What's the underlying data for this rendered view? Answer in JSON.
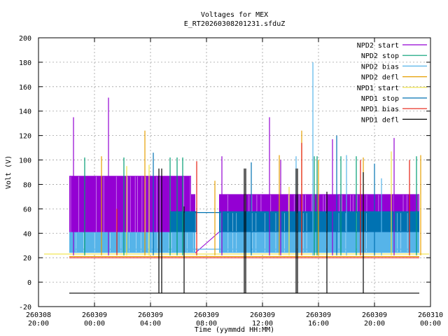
{
  "chart_data": {
    "type": "line",
    "title": "Voltages for MEX",
    "subtitle": "E_RT20260308201231.sfduZ",
    "xlabel": "Time (yymmdd HH:MM)",
    "ylabel": "Volt (V)",
    "ylim": [
      -20,
      200
    ],
    "xlim_hours": [
      0,
      28
    ],
    "grid": true,
    "legend_position": "top-right",
    "y_ticks": [
      -20,
      0,
      20,
      40,
      60,
      80,
      100,
      120,
      140,
      160,
      180,
      200
    ],
    "x_ticks": [
      {
        "h": 0,
        "date": "260308",
        "time": "20:00"
      },
      {
        "h": 4,
        "date": "260309",
        "time": "00:00"
      },
      {
        "h": 8,
        "date": "260309",
        "time": "04:00"
      },
      {
        "h": 12,
        "date": "260309",
        "time": "08:00"
      },
      {
        "h": 16,
        "date": "260309",
        "time": "12:00"
      },
      {
        "h": 20,
        "date": "260309",
        "time": "16:00"
      },
      {
        "h": 24,
        "date": "260309",
        "time": "20:00"
      },
      {
        "h": 28,
        "date": "260310",
        "time": "00:00"
      }
    ],
    "series": [
      {
        "name": "NPD2 start",
        "color": "#9400d3",
        "bands": [
          {
            "x0": 2.2,
            "x1": 11.2,
            "y0": 26,
            "y1": 87,
            "x_drop": 10.9,
            "y_drop": 72
          },
          {
            "x0": 12.9,
            "x1": 27.2,
            "y0": 26,
            "y1": 72
          }
        ],
        "spikes": [
          [
            2.5,
            135
          ],
          [
            5.0,
            151
          ],
          [
            13.1,
            103
          ],
          [
            16.5,
            135
          ],
          [
            17.3,
            100
          ],
          [
            21.0,
            117
          ],
          [
            25.4,
            118
          ]
        ]
      },
      {
        "name": "NPD2 stop",
        "color": "#009e73",
        "bands": [],
        "spikes": [
          [
            3.3,
            102
          ],
          [
            6.1,
            102
          ],
          [
            9.4,
            102
          ],
          [
            9.9,
            102
          ],
          [
            10.3,
            102
          ],
          [
            19.7,
            103
          ],
          [
            19.9,
            103
          ],
          [
            21.6,
            103
          ],
          [
            22.7,
            103
          ],
          [
            27.0,
            103
          ]
        ]
      },
      {
        "name": "NPD2 bias",
        "color": "#56b4e9",
        "bands": [
          {
            "x0": 2.2,
            "x1": 11.2,
            "y0": 24,
            "y1": 41
          },
          {
            "x0": 12.9,
            "x1": 27.2,
            "y0": 24,
            "y1": 41
          }
        ],
        "spikes": [
          [
            19.6,
            180
          ],
          [
            18.4,
            103
          ],
          [
            22.0,
            104
          ],
          [
            24.5,
            85
          ]
        ]
      },
      {
        "name": "NPD2 defl",
        "color": "#e69f00",
        "bands": [],
        "spikes": [
          [
            7.6,
            124
          ],
          [
            4.5,
            103
          ],
          [
            12.6,
            83
          ],
          [
            17.2,
            104
          ],
          [
            18.8,
            124
          ],
          [
            20.0,
            100
          ],
          [
            23.2,
            102
          ],
          [
            27.3,
            104
          ]
        ]
      },
      {
        "name": "NPD1 start",
        "color": "#f0e442",
        "bands": [],
        "spikes": [
          [
            6.3,
            95
          ],
          [
            7.9,
            96
          ],
          [
            17.9,
            78
          ],
          [
            25.2,
            107
          ]
        ]
      },
      {
        "name": "NPD1 stop",
        "color": "#0072b2",
        "bands": [
          {
            "x0": 9.4,
            "x1": 11.3,
            "y0": 41,
            "y1": 58
          },
          {
            "x0": 12.9,
            "x1": 27.2,
            "y0": 41,
            "y1": 58
          }
        ],
        "spikes": [
          [
            8.2,
            106
          ],
          [
            15.2,
            98
          ],
          [
            21.3,
            120
          ],
          [
            24.0,
            97
          ]
        ]
      },
      {
        "name": "NPD1 bias",
        "color": "#e51e10",
        "bands": [],
        "spikes": [
          [
            5.6,
            60
          ],
          [
            11.3,
            99
          ],
          [
            18.8,
            114
          ],
          [
            23.0,
            100
          ],
          [
            26.5,
            100
          ]
        ]
      },
      {
        "name": "NPD1 defl",
        "color": "#000000",
        "bands": [],
        "spikes": [
          [
            8.6,
            93
          ],
          [
            8.8,
            93
          ],
          [
            10.4,
            62
          ],
          [
            14.7,
            93
          ],
          [
            14.8,
            93
          ],
          [
            18.4,
            93
          ],
          [
            18.5,
            93
          ],
          [
            20.6,
            74
          ],
          [
            23.2,
            90
          ]
        ]
      }
    ],
    "baselines": [
      {
        "series": "NPD1 bias",
        "color": "#e51e10",
        "y": 20
      },
      {
        "series": "NPD2 defl",
        "color": "#e69f00",
        "y": 21
      },
      {
        "series": "NPD1 start",
        "color": "#f0e442",
        "y": 23
      },
      {
        "series": "NPD2 bias",
        "color": "#56b4e9",
        "y": 27
      },
      {
        "series": "NPD1 defl",
        "color": "#000000",
        "y": -9
      },
      {
        "series": "NPD1 stop",
        "color": "#0072b2",
        "y": 57
      }
    ]
  }
}
